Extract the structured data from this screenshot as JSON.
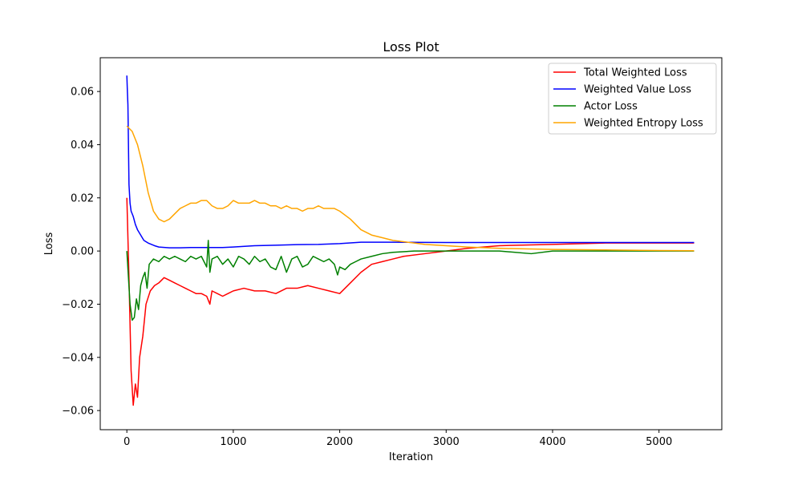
{
  "chart_data": {
    "type": "line",
    "title": "Loss Plot",
    "xlabel": "Iteration",
    "ylabel": "Loss",
    "xlim": [
      -250,
      5590
    ],
    "ylim": [
      -0.0672,
      0.0727
    ],
    "xticks": [
      0,
      1000,
      2000,
      3000,
      4000,
      5000
    ],
    "xtick_labels": [
      "0",
      "1000",
      "2000",
      "3000",
      "4000",
      "5000"
    ],
    "yticks": [
      -0.06,
      -0.04,
      -0.02,
      0.0,
      0.02,
      0.04,
      0.06
    ],
    "ytick_labels": [
      "−0.06",
      "−0.04",
      "−0.02",
      "0.00",
      "0.02",
      "0.04",
      "0.06"
    ],
    "grid": false,
    "legend_position": "top-right",
    "series": [
      {
        "name": "Total Weighted Loss",
        "color": "#ff0000",
        "x": [
          0,
          20,
          40,
          60,
          80,
          100,
          120,
          150,
          180,
          220,
          260,
          300,
          350,
          400,
          450,
          500,
          550,
          600,
          650,
          700,
          750,
          780,
          800,
          850,
          900,
          950,
          1000,
          1100,
          1200,
          1300,
          1400,
          1500,
          1600,
          1700,
          1800,
          1900,
          2000,
          2100,
          2200,
          2300,
          2400,
          2500,
          2600,
          2800,
          3000,
          3200,
          3500,
          4000,
          4500,
          5000,
          5330
        ],
        "values": [
          0.02,
          -0.01,
          -0.045,
          -0.058,
          -0.05,
          -0.055,
          -0.04,
          -0.032,
          -0.02,
          -0.015,
          -0.013,
          -0.012,
          -0.01,
          -0.011,
          -0.012,
          -0.013,
          -0.014,
          -0.015,
          -0.016,
          -0.016,
          -0.017,
          -0.02,
          -0.015,
          -0.016,
          -0.017,
          -0.016,
          -0.015,
          -0.014,
          -0.015,
          -0.015,
          -0.016,
          -0.014,
          -0.014,
          -0.013,
          -0.014,
          -0.015,
          -0.016,
          -0.012,
          -0.008,
          -0.005,
          -0.004,
          -0.003,
          -0.002,
          -0.001,
          0.0,
          0.001,
          0.002,
          0.0025,
          0.003,
          0.003,
          0.003
        ]
      },
      {
        "name": "Weighted Value Loss",
        "color": "#0000ff",
        "x": [
          0,
          5,
          10,
          15,
          20,
          30,
          40,
          60,
          80,
          100,
          130,
          160,
          200,
          260,
          300,
          400,
          500,
          600,
          700,
          800,
          900,
          1000,
          1200,
          1400,
          1600,
          1800,
          2000,
          2200,
          2500,
          3000,
          3500,
          4000,
          4500,
          5000,
          5330
        ],
        "values": [
          0.066,
          0.06,
          0.055,
          0.04,
          0.025,
          0.018,
          0.015,
          0.013,
          0.01,
          0.008,
          0.006,
          0.004,
          0.003,
          0.002,
          0.0015,
          0.0012,
          0.0012,
          0.0013,
          0.0013,
          0.0013,
          0.0013,
          0.0015,
          0.002,
          0.0022,
          0.0024,
          0.0025,
          0.0028,
          0.0033,
          0.0033,
          0.0032,
          0.0032,
          0.0032,
          0.0032,
          0.0032,
          0.0032
        ]
      },
      {
        "name": "Actor Loss",
        "color": "#008000",
        "x": [
          0,
          15,
          30,
          50,
          70,
          90,
          110,
          130,
          150,
          170,
          190,
          210,
          250,
          300,
          350,
          400,
          450,
          500,
          550,
          600,
          650,
          700,
          750,
          765,
          780,
          800,
          850,
          900,
          950,
          1000,
          1050,
          1100,
          1150,
          1200,
          1250,
          1300,
          1350,
          1400,
          1450,
          1500,
          1550,
          1600,
          1650,
          1700,
          1750,
          1800,
          1850,
          1900,
          1950,
          1980,
          2000,
          2050,
          2100,
          2150,
          2200,
          2300,
          2400,
          2500,
          2700,
          3000,
          3500,
          3800,
          4000,
          4500,
          5000,
          5330
        ],
        "values": [
          0.0,
          -0.01,
          -0.02,
          -0.026,
          -0.025,
          -0.018,
          -0.022,
          -0.013,
          -0.01,
          -0.008,
          -0.014,
          -0.005,
          -0.003,
          -0.004,
          -0.002,
          -0.003,
          -0.002,
          -0.003,
          -0.004,
          -0.002,
          -0.003,
          -0.002,
          -0.006,
          0.004,
          -0.008,
          -0.003,
          -0.002,
          -0.005,
          -0.003,
          -0.006,
          -0.002,
          -0.003,
          -0.005,
          -0.002,
          -0.004,
          -0.003,
          -0.006,
          -0.007,
          -0.002,
          -0.008,
          -0.003,
          -0.002,
          -0.006,
          -0.005,
          -0.002,
          -0.003,
          -0.004,
          -0.003,
          -0.005,
          -0.009,
          -0.006,
          -0.007,
          -0.005,
          -0.004,
          -0.003,
          -0.002,
          -0.001,
          -0.0005,
          0.0,
          0.0,
          0.0,
          -0.001,
          0.0,
          0.0,
          0.0,
          0.0
        ]
      },
      {
        "name": "Weighted Entropy Loss",
        "color": "#ffa500",
        "x": [
          0,
          50,
          100,
          150,
          200,
          250,
          300,
          350,
          400,
          450,
          500,
          550,
          600,
          650,
          700,
          750,
          800,
          850,
          900,
          950,
          1000,
          1050,
          1100,
          1150,
          1200,
          1250,
          1300,
          1350,
          1400,
          1450,
          1500,
          1550,
          1600,
          1650,
          1700,
          1750,
          1800,
          1850,
          1900,
          1950,
          2000,
          2100,
          2200,
          2300,
          2400,
          2500,
          2600,
          2700,
          2800,
          3000,
          3200,
          3500,
          4000,
          4500,
          5000,
          5330
        ],
        "values": [
          0.047,
          0.045,
          0.04,
          0.032,
          0.022,
          0.015,
          0.012,
          0.011,
          0.012,
          0.014,
          0.016,
          0.017,
          0.018,
          0.018,
          0.019,
          0.019,
          0.017,
          0.016,
          0.016,
          0.017,
          0.019,
          0.018,
          0.018,
          0.018,
          0.019,
          0.018,
          0.018,
          0.017,
          0.017,
          0.016,
          0.017,
          0.016,
          0.016,
          0.015,
          0.016,
          0.016,
          0.017,
          0.016,
          0.016,
          0.016,
          0.015,
          0.012,
          0.008,
          0.006,
          0.005,
          0.004,
          0.0035,
          0.003,
          0.0025,
          0.002,
          0.0015,
          0.001,
          0.0006,
          0.0004,
          0.0002,
          0.0001
        ]
      }
    ]
  }
}
